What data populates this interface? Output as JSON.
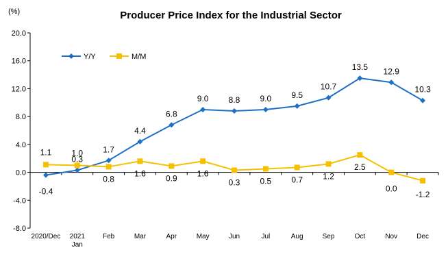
{
  "chart_data": {
    "type": "line",
    "title": "Producer Price Index for the Industrial Sector",
    "unit_label": "(%)",
    "xlabel": "",
    "ylabel": "",
    "ylim": [
      -8.0,
      20.0
    ],
    "y_ticks": [
      "20.0",
      "16.0",
      "12.0",
      "8.0",
      "4.0",
      "0.0",
      "-4.0",
      "-8.0"
    ],
    "y_tick_values": [
      20,
      16,
      12,
      8,
      4,
      0,
      -4,
      -8
    ],
    "categories": [
      "2020/Dec",
      "2021",
      "Feb",
      "Mar",
      "Apr",
      "May",
      "Jun",
      "Jul",
      "Aug",
      "Sep",
      "Oct",
      "Nov",
      "Dec"
    ],
    "category_sublabels": [
      "",
      "Jan",
      "",
      "",
      "",
      "",
      "",
      "",
      "",
      "",
      "",
      "",
      ""
    ],
    "legend_position": "top-left",
    "grid": false,
    "series": [
      {
        "name": "Y/Y",
        "color": "#1f6fc5",
        "marker": "diamond",
        "values": [
          -0.4,
          0.3,
          1.7,
          4.4,
          6.8,
          9.0,
          8.8,
          9.0,
          9.5,
          10.7,
          13.5,
          12.9,
          10.3
        ],
        "labels": [
          "-0.4",
          "0.3",
          "1.7",
          "4.4",
          "6.8",
          "9.0",
          "8.8",
          "9.0",
          "9.5",
          "10.7",
          "13.5",
          "12.9",
          "10.3"
        ]
      },
      {
        "name": "M/M",
        "color": "#f5c000",
        "marker": "square",
        "values": [
          1.1,
          1.0,
          0.8,
          1.6,
          0.9,
          1.6,
          0.3,
          0.5,
          0.7,
          1.2,
          2.5,
          0.0,
          -1.2
        ],
        "labels": [
          "1.1",
          "1.0",
          "0.8",
          "1.6",
          "0.9",
          "1.6",
          "0.3",
          "0.5",
          "0.7",
          "1.2",
          "2.5",
          "0.0",
          "-1.2"
        ]
      }
    ]
  }
}
